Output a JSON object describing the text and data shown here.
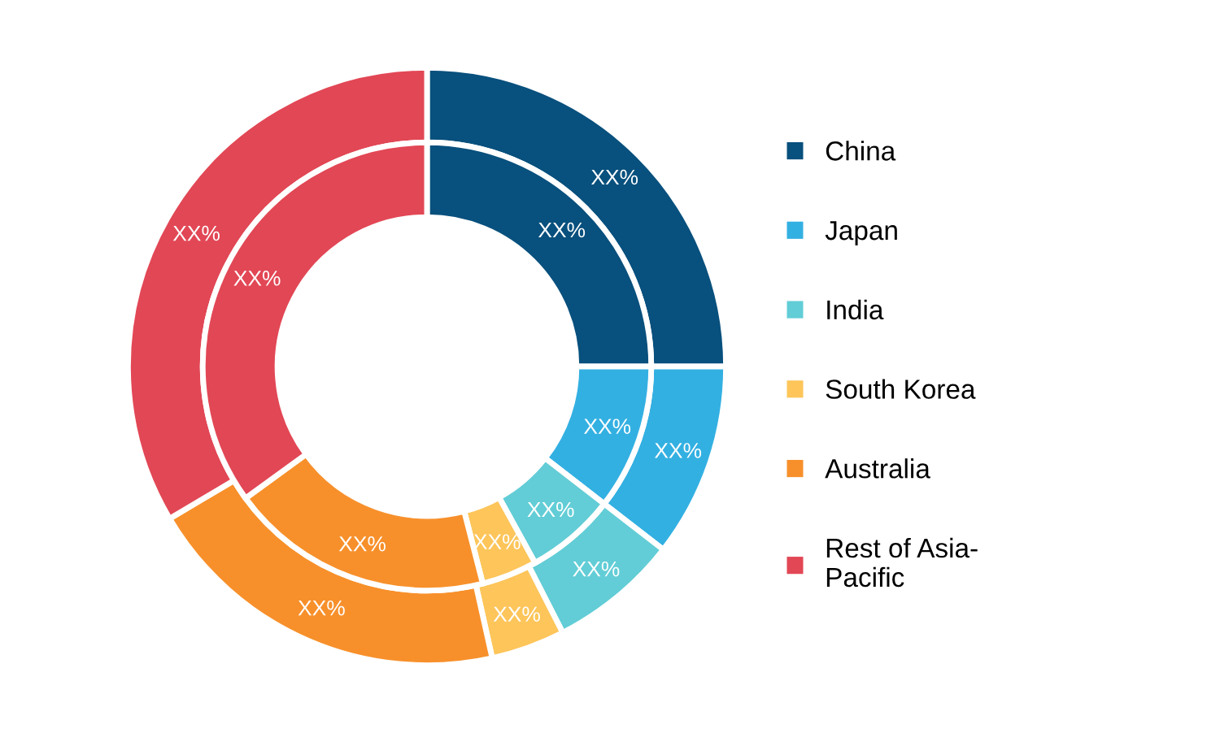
{
  "chart_data": {
    "type": "donut",
    "categories": [
      "China",
      "Japan",
      "India",
      "South Korea",
      "Australia",
      "Rest of Asia-\nPacific"
    ],
    "colors": [
      "#08507d",
      "#33b0e2",
      "#62cdd6",
      "#fdc55a",
      "#f7902b",
      "#e24755"
    ],
    "series": [
      {
        "values": [
          25,
          10.5,
          7,
          4,
          20,
          33.5
        ],
        "value_labels": [
          "XX%",
          "XX%",
          "XX%",
          "XX%",
          "XX%",
          "XX%"
        ]
      },
      {
        "values": [
          25,
          10.5,
          6.5,
          4,
          19,
          35
        ],
        "value_labels": [
          "XX%",
          "XX%",
          "XX%",
          "XX%",
          "XX%",
          "XX%"
        ]
      }
    ],
    "legend": "right"
  }
}
